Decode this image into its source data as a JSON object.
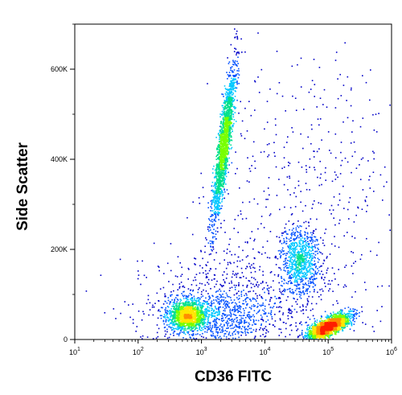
{
  "chart_data": {
    "type": "scatter",
    "subtype": "flow-cytometry-density-dot-plot",
    "title": "",
    "xlabel": "CD36 FITC",
    "ylabel": "Side Scatter",
    "x_scale": "log",
    "y_scale": "linear",
    "xlim": [
      10,
      1000000
    ],
    "ylim": [
      0,
      700000
    ],
    "x_ticks": [
      {
        "value": 10,
        "base": "10",
        "exp": "1"
      },
      {
        "value": 100,
        "base": "10",
        "exp": "2"
      },
      {
        "value": 1000,
        "base": "10",
        "exp": "3"
      },
      {
        "value": 10000,
        "base": "10",
        "exp": "4"
      },
      {
        "value": 100000,
        "base": "10",
        "exp": "5"
      },
      {
        "value": 1000000,
        "base": "10",
        "exp": "6"
      }
    ],
    "y_ticks": [
      {
        "value": 0,
        "label": "0"
      },
      {
        "value": 200000,
        "label": "200K"
      },
      {
        "value": 400000,
        "label": "400K"
      },
      {
        "value": 600000,
        "label": "600K"
      }
    ],
    "grid": false,
    "legend": "none",
    "color_scale": [
      "#0000c8",
      "#0050ff",
      "#00c8ff",
      "#00e08c",
      "#78ff00",
      "#ffe600",
      "#ff8c00",
      "#ff1e00"
    ],
    "populations": [
      {
        "x_center": 600,
        "x_log_sd": 0.15,
        "y_center": 55000,
        "y_sd": 16000,
        "corr": 0,
        "count": 1300
      },
      {
        "x_center": 2200,
        "x_log_sd": 0.09,
        "y_center": 430000,
        "y_sd": 85000,
        "corr": 0.85,
        "count": 1900
      },
      {
        "x_center": 100000,
        "x_log_sd": 0.17,
        "y_center": 30000,
        "y_sd": 14000,
        "corr": 0.75,
        "count": 1900
      },
      {
        "x_center": 35000,
        "x_log_sd": 0.15,
        "y_center": 175000,
        "y_sd": 38000,
        "corr": 0,
        "count": 800
      },
      {
        "x_center": 1500,
        "x_log_sd": 0.5,
        "y_center": 50000,
        "y_sd": 30000,
        "corr": 0,
        "count": 700
      },
      {
        "x_center": 40000,
        "x_log_sd": 0.8,
        "y_center": 320000,
        "y_sd": 160000,
        "corr": 0,
        "count": 500
      },
      {
        "x_center": 4000,
        "x_log_sd": 0.8,
        "y_center": 90000,
        "y_sd": 60000,
        "corr": 0,
        "count": 600
      }
    ]
  }
}
